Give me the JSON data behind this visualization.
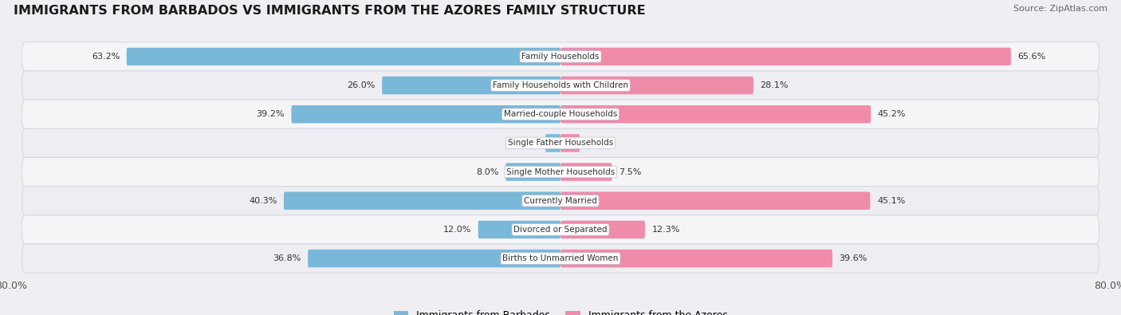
{
  "title": "IMMIGRANTS FROM BARBADOS VS IMMIGRANTS FROM THE AZORES FAMILY STRUCTURE",
  "source": "Source: ZipAtlas.com",
  "categories": [
    "Family Households",
    "Family Households with Children",
    "Married-couple Households",
    "Single Father Households",
    "Single Mother Households",
    "Currently Married",
    "Divorced or Separated",
    "Births to Unmarried Women"
  ],
  "barbados_values": [
    63.2,
    26.0,
    39.2,
    2.2,
    8.0,
    40.3,
    12.0,
    36.8
  ],
  "azores_values": [
    65.6,
    28.1,
    45.2,
    2.8,
    7.5,
    45.1,
    12.3,
    39.6
  ],
  "max_value": 80.0,
  "barbados_color": "#7ab8d9",
  "azores_color": "#f08baa",
  "barbados_label_color": "#333333",
  "azores_label_color": "#333333",
  "bg_color": "#eeeef3",
  "row_bg_even": "#f5f5f8",
  "row_bg_odd": "#ededf2",
  "bar_height": 0.62,
  "legend_barbados": "Immigrants from Barbados",
  "legend_azores": "Immigrants from the Azores",
  "title_fontsize": 11.5,
  "label_fontsize": 8.0,
  "cat_fontsize": 7.5,
  "tick_fontsize": 9.0
}
